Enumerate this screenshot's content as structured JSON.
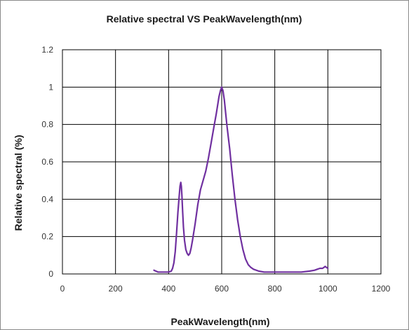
{
  "chart_data": {
    "type": "line",
    "title": "Relative spectral  VS  PeakWavelength(nm)",
    "xlabel": "PeakWavelength(nm)",
    "ylabel": "Relative spectral  (%)",
    "xlim": [
      0,
      1200
    ],
    "ylim": [
      0,
      1.2
    ],
    "xticks": [
      "0",
      "200",
      "400",
      "600",
      "800",
      "1000",
      "1200"
    ],
    "yticks": [
      "0",
      "0.2",
      "0.4",
      "0.6",
      "0.8",
      "1",
      "1.2"
    ],
    "grid": true,
    "legend": "none",
    "series": [
      {
        "color": "#7030a0",
        "x": [
          345,
          360,
          380,
          400,
          410,
          415,
          420,
          425,
          430,
          435,
          440,
          443,
          446,
          448,
          450,
          453,
          456,
          460,
          465,
          470,
          475,
          480,
          485,
          490,
          500,
          510,
          520,
          530,
          540,
          550,
          560,
          570,
          580,
          590,
          595,
          600,
          605,
          610,
          615,
          620,
          630,
          640,
          650,
          660,
          670,
          680,
          690,
          700,
          710,
          720,
          740,
          760,
          780,
          800,
          850,
          900,
          930,
          950,
          960,
          970,
          980,
          985,
          990,
          995,
          1000
        ],
        "y": [
          0.02,
          0.01,
          0.01,
          0.01,
          0.015,
          0.03,
          0.06,
          0.12,
          0.22,
          0.33,
          0.42,
          0.47,
          0.49,
          0.47,
          0.42,
          0.33,
          0.25,
          0.18,
          0.13,
          0.11,
          0.1,
          0.11,
          0.14,
          0.18,
          0.27,
          0.37,
          0.45,
          0.5,
          0.55,
          0.62,
          0.7,
          0.78,
          0.86,
          0.95,
          0.98,
          1.0,
          0.98,
          0.93,
          0.86,
          0.79,
          0.67,
          0.53,
          0.4,
          0.29,
          0.2,
          0.13,
          0.08,
          0.05,
          0.035,
          0.025,
          0.015,
          0.01,
          0.01,
          0.01,
          0.01,
          0.01,
          0.015,
          0.02,
          0.025,
          0.03,
          0.03,
          0.035,
          0.04,
          0.035,
          0.03
        ]
      }
    ]
  }
}
